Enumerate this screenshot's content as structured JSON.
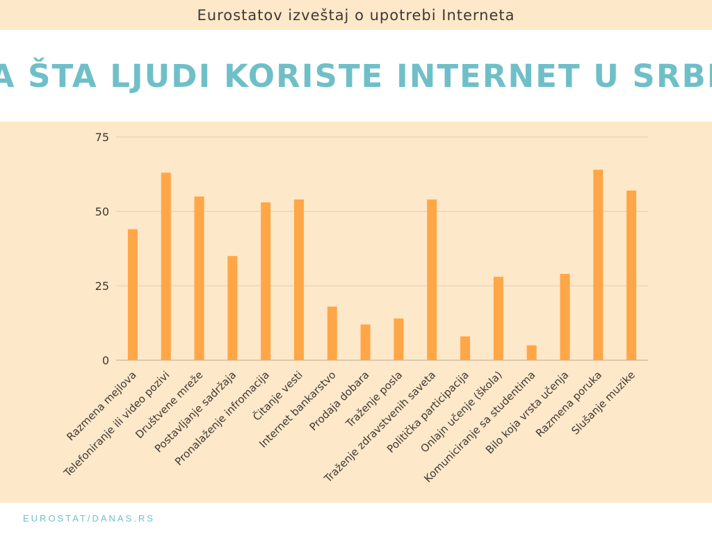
{
  "header": {
    "subtitle": "Eurostatov izveštaj o upotrebi Interneta",
    "title": "ZA ŠTA LJUDI KORISTE INTERNET U SRBIJI"
  },
  "footer": {
    "source": "EUROSTAT/DANAS.RS"
  },
  "colors": {
    "bar": "#ffa647",
    "title": "#6fbfc8",
    "background": "#fde8c9",
    "grid": "#e2cdb2"
  },
  "chart_data": {
    "type": "bar",
    "title": "ZA ŠTA LJUDI KORISTE INTERNET U SRBIJI",
    "xlabel": "",
    "ylabel": "",
    "ylim": [
      0,
      75
    ],
    "yticks": [
      0,
      25,
      50,
      75
    ],
    "grid": true,
    "categories": [
      "Razmena mejlova",
      "Telefoniranje ili video pozivi",
      "Društvene mreže",
      "Postavljanje sadržaja",
      "Pronalaženje infromacija",
      "Čitanje vesti",
      "Internet bankarstvo",
      "Prodaja dobara",
      "Traženje posla",
      "Traženje zdravstvenih saveta",
      "Politička participacija",
      "Onlajn učenje (škola)",
      "Komuniciranje sa studentima",
      "Bilo koja vrsta učenja",
      "Razmena poruka",
      "Slušanje muzike"
    ],
    "values": [
      44,
      63,
      55,
      35,
      53,
      54,
      18,
      12,
      14,
      54,
      8,
      28,
      5,
      29,
      64,
      57
    ]
  }
}
